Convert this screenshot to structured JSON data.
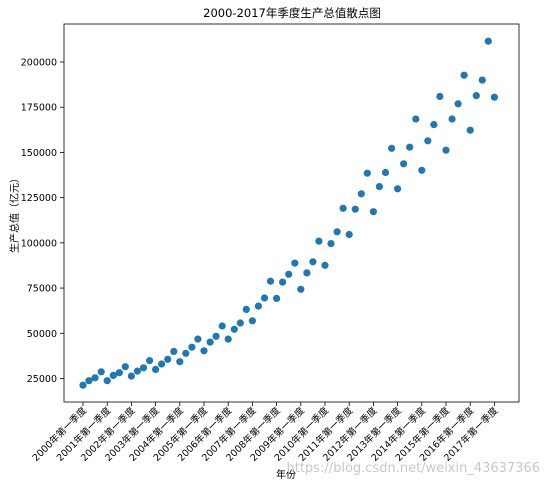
{
  "chart_data": {
    "type": "scatter",
    "title": "2000-2017年季度生产总值散点图",
    "xlabel": "年份",
    "ylabel": "生产总值（亿元）",
    "ylim": [
      12000,
      221000
    ],
    "yticks": [
      25000,
      50000,
      75000,
      100000,
      125000,
      150000,
      175000,
      200000
    ],
    "xtick_labels": [
      "2000年第一季度",
      "2001年第一季度",
      "2002年第一季度",
      "2003年第一季度",
      "2004年第一季度",
      "2005年第一季度",
      "2006年第一季度",
      "2007年第一季度",
      "2008年第一季度",
      "2009年第一季度",
      "2010年第一季度",
      "2011年第一季度",
      "2012年第一季度",
      "2013年第一季度",
      "2014年第一季度",
      "2015年第一季度",
      "2016年第一季度",
      "2017年第一季度"
    ],
    "grid": false,
    "marker_color": "#1f77b4",
    "y": [
      21300,
      23800,
      25400,
      28700,
      23800,
      26700,
      28200,
      31500,
      26300,
      29100,
      30900,
      34900,
      30000,
      33000,
      35600,
      40000,
      34300,
      38900,
      42300,
      46800,
      40300,
      45100,
      48300,
      54000,
      46800,
      52200,
      55700,
      63200,
      56900,
      65000,
      69500,
      78800,
      69300,
      78300,
      82600,
      88800,
      74300,
      83400,
      89500,
      100900,
      87600,
      99600,
      106100,
      119100,
      104600,
      118600,
      127100,
      138500,
      117200,
      131100,
      138900,
      152300,
      129900,
      143700,
      152900,
      168500,
      140100,
      156400,
      165400,
      180900,
      151200,
      168500,
      176900,
      192700,
      162300,
      181400,
      190000,
      211500,
      180500
    ]
  },
  "watermark": "https://blog.csdn.net/weixin_43637366"
}
